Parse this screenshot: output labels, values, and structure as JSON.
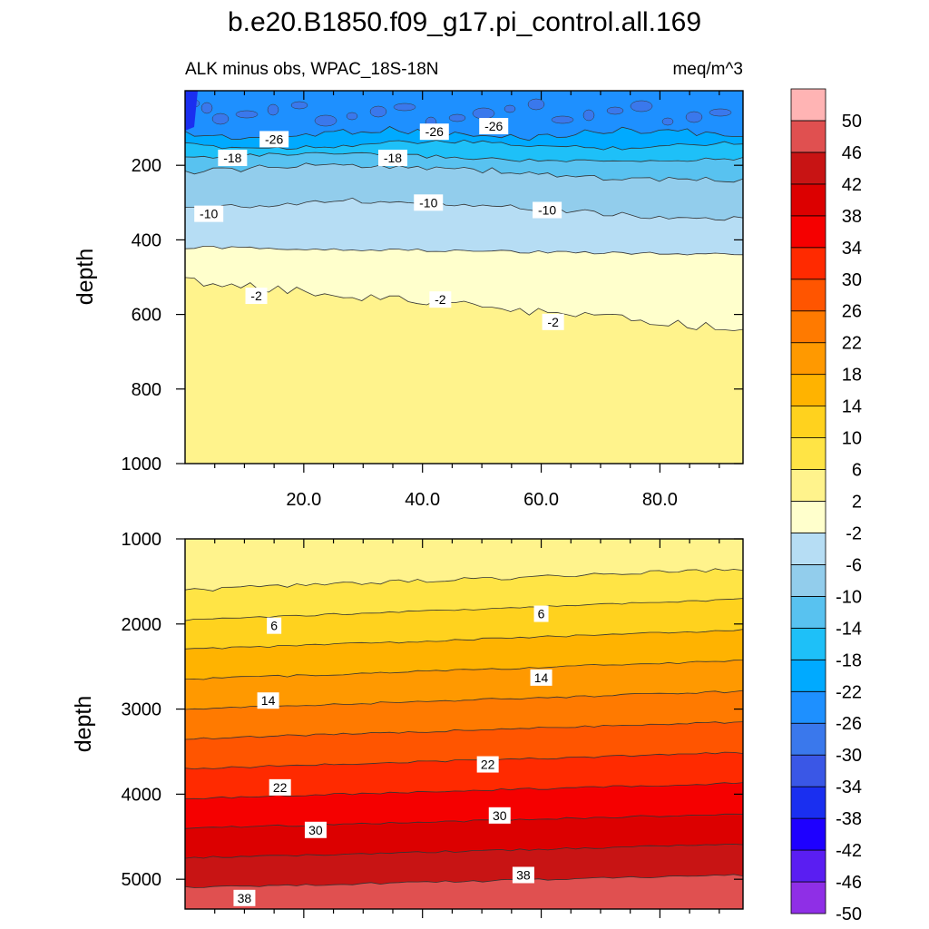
{
  "title": "b.e20.B1850.f09_g17.pi_control.all.169",
  "subtitle_left": "ALK minus obs, WPAC_18S-18N",
  "subtitle_right": "meq/m^3",
  "colors": {
    "levels": [
      "#8f2fe6",
      "#5a1ef2",
      "#1e00ff",
      "#1a2ff0",
      "#3a57e6",
      "#3a78ec",
      "#1e90ff",
      "#00aaff",
      "#1ec0f8",
      "#58c2f0",
      "#92cdec",
      "#b6ddf4",
      "#ffffcc",
      "#fff38c",
      "#ffe445",
      "#ffd21e",
      "#ffb300",
      "#ff9900",
      "#ff7a00",
      "#ff5500",
      "#ff2a00",
      "#f50000",
      "#dc0000",
      "#c81414",
      "#e05050",
      "#ffb4b4"
    ]
  },
  "chart_data": [
    {
      "type": "contour",
      "panel": "upper",
      "ylabel": "depth",
      "xlim": [
        0,
        94
      ],
      "ylim": [
        1000,
        0
      ],
      "xticks": [
        "20.0",
        "40.0",
        "60.0",
        "80.0"
      ],
      "xtick_values": [
        20,
        40,
        60,
        80
      ],
      "yticks": [
        "200",
        "400",
        "600",
        "800",
        "1000"
      ],
      "ytick_values": [
        200,
        400,
        600,
        800,
        1000
      ],
      "contour_labels": [
        {
          "text": "-26",
          "x": 15,
          "y": 130
        },
        {
          "text": "-26",
          "x": 42,
          "y": 110
        },
        {
          "text": "-26",
          "x": 52,
          "y": 95
        },
        {
          "text": "-18",
          "x": 8,
          "y": 180
        },
        {
          "text": "-18",
          "x": 35,
          "y": 180
        },
        {
          "text": "-10",
          "x": 4,
          "y": 330
        },
        {
          "text": "-10",
          "x": 41,
          "y": 300
        },
        {
          "text": "-10",
          "x": 61,
          "y": 320
        },
        {
          "text": "-2",
          "x": 12,
          "y": 550
        },
        {
          "text": "-2",
          "x": 43,
          "y": 560
        },
        {
          "text": "-2",
          "x": 62,
          "y": 620
        }
      ]
    },
    {
      "type": "contour",
      "panel": "lower",
      "ylabel": "depth",
      "xlim": [
        0,
        94
      ],
      "ylim": [
        5350,
        1000
      ],
      "xticks": [],
      "yticks": [
        "1000",
        "2000",
        "3000",
        "4000",
        "5000"
      ],
      "ytick_values": [
        1000,
        2000,
        3000,
        4000,
        5000
      ],
      "contour_labels": [
        {
          "text": "6",
          "x": 15,
          "y": 2020
        },
        {
          "text": "6",
          "x": 60,
          "y": 1880
        },
        {
          "text": "14",
          "x": 14,
          "y": 2900
        },
        {
          "text": "14",
          "x": 60,
          "y": 2630
        },
        {
          "text": "22",
          "x": 16,
          "y": 3920
        },
        {
          "text": "22",
          "x": 51,
          "y": 3650
        },
        {
          "text": "30",
          "x": 22,
          "y": 4420
        },
        {
          "text": "30",
          "x": 53,
          "y": 4250
        },
        {
          "text": "38",
          "x": 10,
          "y": 5220
        },
        {
          "text": "38",
          "x": 57,
          "y": 4950
        }
      ]
    }
  ],
  "colorbar": {
    "labels": [
      "50",
      "46",
      "42",
      "38",
      "34",
      "30",
      "26",
      "22",
      "18",
      "14",
      "10",
      "6",
      "2",
      "-2",
      "-6",
      "-10",
      "-14",
      "-18",
      "-22",
      "-26",
      "-30",
      "-34",
      "-38",
      "-42",
      "-46",
      "-50"
    ]
  }
}
